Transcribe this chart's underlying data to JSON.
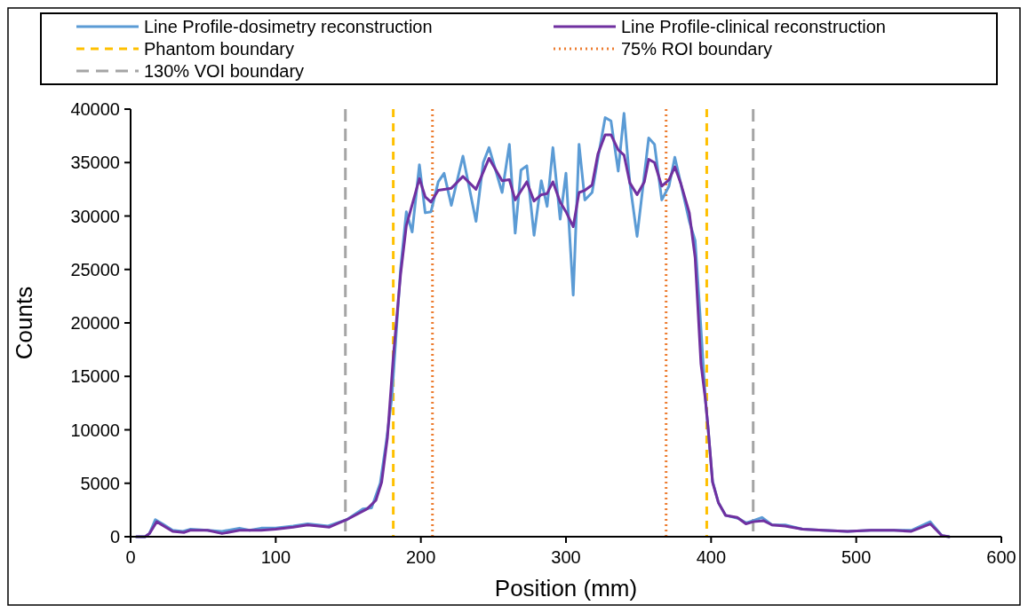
{
  "chart_data": {
    "type": "line",
    "xlabel": "Position (mm)",
    "ylabel": "Counts",
    "xlim": [
      0,
      600
    ],
    "xticks": [
      0,
      100,
      200,
      300,
      400,
      500,
      600
    ],
    "ylim": [
      0,
      40000
    ],
    "yticks": [
      0,
      5000,
      10000,
      15000,
      20000,
      25000,
      30000,
      35000,
      40000
    ],
    "grid": false,
    "legend": "top",
    "marker": "none",
    "line_style": "solid",
    "series": [
      {
        "name": "Line Profile-dosimetry reconstruction",
        "color": "#5b9bd5",
        "x": [
          4,
          10,
          13,
          17,
          22,
          29,
          36,
          41,
          53,
          63,
          75,
          82,
          90,
          100,
          112,
          122,
          136,
          149,
          160,
          166,
          172,
          176,
          180,
          183,
          186,
          190,
          194,
          199,
          203,
          207,
          212,
          216,
          221,
          229,
          238,
          243,
          247,
          256,
          261,
          265,
          269,
          273,
          278,
          283,
          287,
          291,
          296,
          300,
          305,
          309,
          313,
          318,
          322,
          327,
          331,
          336,
          340,
          344,
          349,
          357,
          361,
          366,
          371,
          375,
          379,
          385,
          389,
          393,
          396,
          398,
          401,
          405,
          410,
          419,
          424,
          429,
          435,
          442,
          451,
          463,
          477,
          494,
          510,
          526,
          538,
          551,
          559,
          564
        ],
        "values": [
          0,
          0,
          300,
          1600,
          1200,
          600,
          500,
          700,
          600,
          500,
          800,
          600,
          800,
          800,
          1000,
          1200,
          1000,
          1600,
          2600,
          2700,
          5000,
          8700,
          13000,
          19000,
          25000,
          30400,
          28500,
          34800,
          30300,
          30400,
          33200,
          34000,
          31000,
          35600,
          29500,
          35000,
          36400,
          32200,
          36700,
          28400,
          34300,
          34700,
          28200,
          33300,
          30900,
          36400,
          29700,
          34000,
          22600,
          36700,
          31500,
          32200,
          35400,
          39200,
          38900,
          34200,
          39600,
          33100,
          28100,
          37300,
          36700,
          31500,
          32800,
          35500,
          33100,
          29500,
          27700,
          19500,
          13000,
          10000,
          5200,
          3200,
          2000,
          1700,
          1300,
          1500,
          1800,
          1100,
          1100,
          700,
          600,
          500,
          600,
          600,
          600,
          1400,
          100,
          0
        ]
      },
      {
        "name": "Line Profile-clinical reconstruction",
        "color": "#7030a0",
        "x": [
          4,
          10,
          13,
          18,
          29,
          37,
          41,
          53,
          63,
          75,
          90,
          100,
          112,
          122,
          137,
          149,
          163,
          169,
          173,
          177,
          181,
          186,
          190,
          199,
          203,
          207,
          212,
          221,
          229,
          238,
          247,
          256,
          261,
          265,
          273,
          278,
          283,
          287,
          291,
          296,
          300,
          305,
          309,
          313,
          318,
          322,
          327,
          331,
          336,
          340,
          344,
          349,
          354,
          357,
          361,
          366,
          371,
          375,
          379,
          385,
          389,
          393,
          396,
          398,
          401,
          405,
          410,
          418,
          424,
          429,
          436,
          442,
          451,
          463,
          477,
          494,
          510,
          526,
          538,
          551,
          559,
          564
        ],
        "values": [
          0,
          0,
          300,
          1400,
          500,
          400,
          600,
          600,
          300,
          600,
          600,
          700,
          900,
          1100,
          900,
          1600,
          2600,
          3400,
          5100,
          9300,
          16800,
          24500,
          29100,
          33500,
          31800,
          31300,
          32400,
          32600,
          33700,
          32500,
          35400,
          33300,
          33400,
          31500,
          33200,
          31400,
          32000,
          32100,
          33200,
          31300,
          30400,
          29000,
          32200,
          32400,
          32900,
          35800,
          37600,
          37600,
          36200,
          35700,
          33100,
          32000,
          33200,
          35300,
          35000,
          32800,
          33400,
          34600,
          33100,
          30300,
          26100,
          16200,
          12900,
          10100,
          5100,
          3200,
          2000,
          1800,
          1200,
          1400,
          1500,
          1100,
          1000,
          700,
          600,
          500,
          600,
          600,
          500,
          1200,
          100,
          0
        ]
      }
    ],
    "ref_lines": [
      {
        "axis": "x",
        "value": 181,
        "label": "Phantom boundary",
        "color": "#ffc000",
        "line_style": "dashed"
      },
      {
        "axis": "x",
        "value": 397,
        "color": "#ffc000",
        "line_style": "dashed"
      },
      {
        "axis": "x",
        "value": 208,
        "label": "75% ROI boundary",
        "color": "#ed7d31",
        "line_style": "dotted"
      },
      {
        "axis": "x",
        "value": 369,
        "color": "#ed7d31",
        "line_style": "dotted"
      },
      {
        "axis": "x",
        "value": 148,
        "label": "130% VOI boundary",
        "color": "#a5a5a5",
        "line_style": "dashed"
      },
      {
        "axis": "x",
        "value": 429,
        "color": "#a5a5a5",
        "line_style": "dashed"
      }
    ]
  }
}
